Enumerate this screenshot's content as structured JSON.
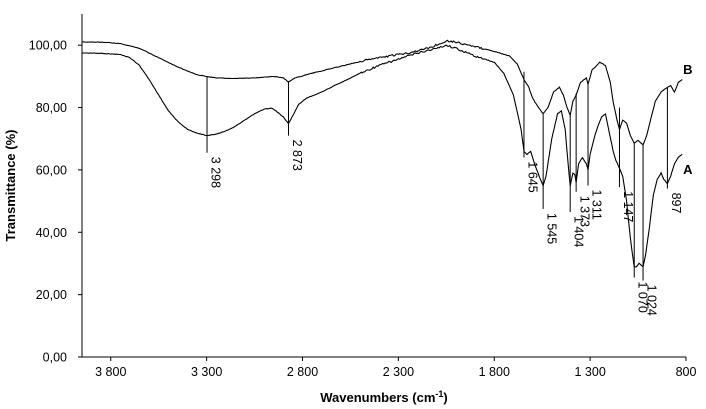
{
  "chart_data": {
    "type": "line",
    "title": "",
    "xlabel": "Wavenumbers (cm",
    "xlabel_sup": "-1",
    "xlabel_close": ")",
    "ylabel": "Transmittance (%)",
    "xlim": [
      3950,
      800
    ],
    "x_reversed": true,
    "ylim": [
      0,
      110
    ],
    "grid": false,
    "x_ticks": [
      {
        "value": 3800,
        "label": "3 800"
      },
      {
        "value": 3300,
        "label": "3 300"
      },
      {
        "value": 2800,
        "label": "2 800"
      },
      {
        "value": 2300,
        "label": "2 300"
      },
      {
        "value": 1800,
        "label": "1 800"
      },
      {
        "value": 1300,
        "label": "1 300"
      },
      {
        "value": 800,
        "label": "800"
      }
    ],
    "y_ticks": [
      {
        "value": 0,
        "label": "0,00"
      },
      {
        "value": 20,
        "label": "20,00"
      },
      {
        "value": 40,
        "label": "40,00"
      },
      {
        "value": 60,
        "label": "60,00"
      },
      {
        "value": 80,
        "label": "80,00"
      },
      {
        "value": 100,
        "label": "100,00"
      }
    ],
    "series": [
      {
        "name": "A",
        "label_at": {
          "x": 815,
          "y": 60
        },
        "points": [
          [
            3950,
            97.5
          ],
          [
            3850,
            97.4
          ],
          [
            3750,
            97.0
          ],
          [
            3700,
            96.0
          ],
          [
            3650,
            93.5
          ],
          [
            3600,
            89.0
          ],
          [
            3550,
            84.0
          ],
          [
            3500,
            79.0
          ],
          [
            3450,
            75.5
          ],
          [
            3400,
            73.0
          ],
          [
            3350,
            71.8
          ],
          [
            3300,
            71.0
          ],
          [
            3250,
            71.5
          ],
          [
            3200,
            72.5
          ],
          [
            3150,
            74.0
          ],
          [
            3100,
            76.0
          ],
          [
            3050,
            78.0
          ],
          [
            3000,
            79.5
          ],
          [
            2960,
            79.8
          ],
          [
            2930,
            78.5
          ],
          [
            2900,
            77.0
          ],
          [
            2873,
            74.8
          ],
          [
            2850,
            77.5
          ],
          [
            2820,
            81.0
          ],
          [
            2780,
            83.0
          ],
          [
            2700,
            85.0
          ],
          [
            2600,
            88.0
          ],
          [
            2500,
            91.0
          ],
          [
            2400,
            93.5
          ],
          [
            2300,
            95.5
          ],
          [
            2200,
            97.5
          ],
          [
            2100,
            99.0
          ],
          [
            2050,
            100.0
          ],
          [
            2000,
            99.0
          ],
          [
            1900,
            96.5
          ],
          [
            1800,
            94.5
          ],
          [
            1750,
            91.0
          ],
          [
            1700,
            84.0
          ],
          [
            1660,
            73.0
          ],
          [
            1645,
            66.0
          ],
          [
            1630,
            65.0
          ],
          [
            1610,
            66.0
          ],
          [
            1590,
            62.0
          ],
          [
            1560,
            57.0
          ],
          [
            1545,
            55.0
          ],
          [
            1530,
            58.0
          ],
          [
            1500,
            70.0
          ],
          [
            1470,
            78.0
          ],
          [
            1450,
            79.0
          ],
          [
            1430,
            73.0
          ],
          [
            1415,
            62.0
          ],
          [
            1404,
            55.0
          ],
          [
            1390,
            59.0
          ],
          [
            1380,
            58.5
          ],
          [
            1373,
            56.0
          ],
          [
            1360,
            62.0
          ],
          [
            1340,
            64.0
          ],
          [
            1320,
            62.0
          ],
          [
            1311,
            60.0
          ],
          [
            1300,
            65.0
          ],
          [
            1280,
            70.0
          ],
          [
            1260,
            74.0
          ],
          [
            1240,
            77.0
          ],
          [
            1220,
            78.0
          ],
          [
            1200,
            72.0
          ],
          [
            1180,
            66.0
          ],
          [
            1165,
            63.0
          ],
          [
            1147,
            60.5
          ],
          [
            1130,
            58.0
          ],
          [
            1110,
            50.0
          ],
          [
            1090,
            38.0
          ],
          [
            1075,
            31.0
          ],
          [
            1070,
            29.0
          ],
          [
            1060,
            28.8
          ],
          [
            1045,
            30.0
          ],
          [
            1035,
            29.5
          ],
          [
            1024,
            29.0
          ],
          [
            1010,
            33.0
          ],
          [
            990,
            42.0
          ],
          [
            970,
            52.0
          ],
          [
            950,
            57.0
          ],
          [
            930,
            59.0
          ],
          [
            915,
            57.0
          ],
          [
            897,
            55.5
          ],
          [
            880,
            58.0
          ],
          [
            860,
            62.0
          ],
          [
            840,
            64.0
          ],
          [
            820,
            65.0
          ]
        ]
      },
      {
        "name": "B",
        "label_at": {
          "x": 815,
          "y": 92
        },
        "points": [
          [
            3950,
            101.0
          ],
          [
            3850,
            101.0
          ],
          [
            3750,
            100.5
          ],
          [
            3650,
            99.0
          ],
          [
            3550,
            96.0
          ],
          [
            3450,
            93.0
          ],
          [
            3350,
            90.5
          ],
          [
            3300,
            90.0
          ],
          [
            3250,
            89.5
          ],
          [
            3150,
            89.3
          ],
          [
            3050,
            89.5
          ],
          [
            2950,
            90.0
          ],
          [
            2900,
            89.5
          ],
          [
            2873,
            88.2
          ],
          [
            2840,
            89.5
          ],
          [
            2750,
            91.0
          ],
          [
            2650,
            92.5
          ],
          [
            2550,
            94.0
          ],
          [
            2450,
            95.5
          ],
          [
            2350,
            96.5
          ],
          [
            2250,
            97.5
          ],
          [
            2150,
            99.0
          ],
          [
            2080,
            100.5
          ],
          [
            2050,
            101.5
          ],
          [
            2000,
            101.0
          ],
          [
            1900,
            99.5
          ],
          [
            1800,
            98.0
          ],
          [
            1720,
            96.5
          ],
          [
            1680,
            94.0
          ],
          [
            1645,
            89.0
          ],
          [
            1620,
            86.5
          ],
          [
            1600,
            83.0
          ],
          [
            1570,
            80.0
          ],
          [
            1545,
            78.0
          ],
          [
            1520,
            80.0
          ],
          [
            1490,
            85.0
          ],
          [
            1460,
            86.5
          ],
          [
            1440,
            84.0
          ],
          [
            1420,
            80.0
          ],
          [
            1404,
            77.5
          ],
          [
            1390,
            82.0
          ],
          [
            1373,
            84.0
          ],
          [
            1350,
            88.0
          ],
          [
            1320,
            89.5
          ],
          [
            1311,
            87.5
          ],
          [
            1290,
            92.0
          ],
          [
            1250,
            94.5
          ],
          [
            1220,
            93.5
          ],
          [
            1195,
            88.0
          ],
          [
            1180,
            82.0
          ],
          [
            1160,
            76.0
          ],
          [
            1147,
            73.0
          ],
          [
            1130,
            76.0
          ],
          [
            1110,
            75.0
          ],
          [
            1090,
            71.0
          ],
          [
            1070,
            68.5
          ],
          [
            1050,
            69.5
          ],
          [
            1024,
            68.0
          ],
          [
            1005,
            71.0
          ],
          [
            985,
            76.0
          ],
          [
            960,
            82.0
          ],
          [
            930,
            85.0
          ],
          [
            910,
            86.0
          ],
          [
            897,
            86.5
          ],
          [
            880,
            87.0
          ],
          [
            860,
            85.0
          ],
          [
            840,
            88.0
          ],
          [
            820,
            89.0
          ]
        ]
      }
    ],
    "annotations": [
      {
        "label": "3 298",
        "x": 3298,
        "y_top": 89.8,
        "y_bottom": 65.5
      },
      {
        "label": "2 873",
        "x": 2873,
        "y_top": 88.5,
        "y_bottom": 71.0
      },
      {
        "label": "1 645",
        "x": 1645,
        "y_top": 91.5,
        "y_bottom": 64.0
      },
      {
        "label": "1 545",
        "x": 1545,
        "y_top": 78.0,
        "y_bottom": 47.5
      },
      {
        "label": "1 404",
        "x": 1404,
        "y_top": 77.5,
        "y_bottom": 46.5
      },
      {
        "label": "1 373",
        "x": 1373,
        "y_top": 84.5,
        "y_bottom": 53.0
      },
      {
        "label": "1 311",
        "x": 1311,
        "y_top": 87.5,
        "y_bottom": 55.0
      },
      {
        "label": "1 147",
        "x": 1147,
        "y_top": 80.0,
        "y_bottom": 54.5
      },
      {
        "label": "1 070",
        "x": 1070,
        "y_top": 68.5,
        "y_bottom": 25.5
      },
      {
        "label": "1 024",
        "x": 1024,
        "y_top": 68.0,
        "y_bottom": 24.5
      },
      {
        "label": "897",
        "x": 897,
        "y_top": 86.5,
        "y_bottom": 54.0
      }
    ]
  }
}
